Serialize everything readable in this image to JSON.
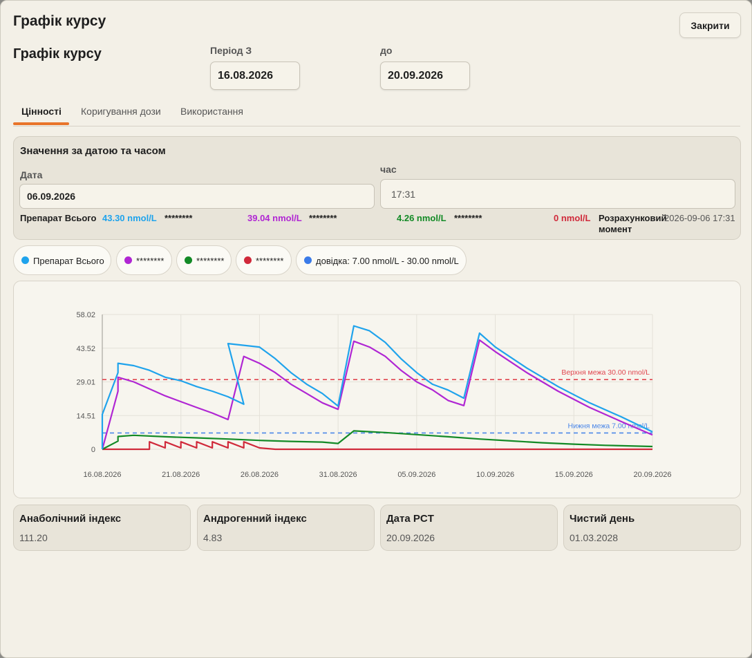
{
  "dialog": {
    "title": "Графік курсу",
    "close_label": "Закрити"
  },
  "header": {
    "title": "Графік курсу",
    "period_from_label": "Період З",
    "period_from_value": "16.08.2026",
    "period_to_label": "до",
    "period_to_value": "20.09.2026"
  },
  "tabs": [
    {
      "label": "Цінності",
      "active": true
    },
    {
      "label": "Коригування дози",
      "active": false
    },
    {
      "label": "Використання",
      "active": false
    }
  ],
  "values_panel": {
    "title": "Значення за датою та часом",
    "date_label": "Дата",
    "date_value": "06.09.2026",
    "time_label": "час",
    "time_value": "17:31",
    "readout": {
      "total_label": "Препарат Всього",
      "total_value": "43.30 nmol/L",
      "s1_label": "********",
      "s1_value": "39.04 nmol/L",
      "s2_label": "********",
      "s2_value": "4.26 nmol/L",
      "s3_label": "********",
      "s3_value": "0 nmol/L",
      "moment_label": "Розрахунковий момент",
      "moment_value": "2026-09-06 17:31"
    }
  },
  "legend": [
    {
      "label": "Препарат Всього",
      "color": "#1fa3ec"
    },
    {
      "label": "********",
      "color": "#b026d3"
    },
    {
      "label": "********",
      "color": "#138a26"
    },
    {
      "label": "********",
      "color": "#d0293a"
    },
    {
      "label": "довідка: 7.00 nmol/L - 30.00 nmol/L",
      "color": "#3b7be8"
    }
  ],
  "colors": {
    "total": "#1fa3ec",
    "s1": "#b026d3",
    "s2": "#138a26",
    "s3": "#d0293a",
    "upper": "#e0464f",
    "lower": "#4a86e8",
    "accent": "#e8742a"
  },
  "chart_data": {
    "type": "line",
    "x_ticks": [
      "16.08.2026",
      "21.08.2026",
      "26.08.2026",
      "31.08.2026",
      "05.09.2026",
      "10.09.2026",
      "15.09.2026",
      "20.09.2026"
    ],
    "y_ticks": [
      "58.02",
      "43.52",
      "29.01",
      "14.51",
      "0"
    ],
    "ylim": [
      0,
      58.02
    ],
    "xlim": [
      "2026-08-16",
      "2026-09-20"
    ],
    "ref_upper": {
      "value": 30.0,
      "label": "Верхня межа 30.00 nmol/L"
    },
    "ref_lower": {
      "value": 7.0,
      "label": "Нижня межа 7.00 nmol/L"
    },
    "series": [
      {
        "key": "total",
        "x": [
          "2026-08-16",
          "2026-08-16",
          "2026-08-17",
          "2026-08-17",
          "2026-08-18",
          "2026-08-19",
          "2026-08-20",
          "2026-08-21",
          "2026-08-22",
          "2026-08-23",
          "2026-08-24",
          "2026-08-25",
          "2026-08-24",
          "2026-08-26",
          "2026-08-27",
          "2026-08-28",
          "2026-08-29",
          "2026-08-30",
          "2026-08-31",
          "2026-09-01",
          "2026-09-02",
          "2026-09-03",
          "2026-09-04",
          "2026-09-05",
          "2026-09-06",
          "2026-09-07",
          "2026-09-08",
          "2026-09-09",
          "2026-09-10",
          "2026-09-12",
          "2026-09-14",
          "2026-09-16",
          "2026-09-18",
          "2026-09-20"
        ],
        "y": [
          0,
          15,
          33,
          37,
          36,
          34,
          31,
          29.5,
          27,
          25,
          22.6,
          19.4,
          45.5,
          44,
          39,
          33,
          28,
          24,
          18.6,
          53.1,
          51,
          46,
          39,
          33,
          28,
          25.5,
          22,
          50,
          44,
          35,
          27,
          20,
          14,
          7.5
        ]
      },
      {
        "key": "s1",
        "x": [
          "2026-08-16",
          "2026-08-17",
          "2026-08-17",
          "2026-08-18",
          "2026-08-19",
          "2026-08-20",
          "2026-08-21",
          "2026-08-22",
          "2026-08-23",
          "2026-08-24",
          "2026-08-25",
          "2026-08-26",
          "2026-08-27",
          "2026-08-28",
          "2026-08-29",
          "2026-08-30",
          "2026-08-31",
          "2026-09-01",
          "2026-09-02",
          "2026-09-03",
          "2026-09-04",
          "2026-09-05",
          "2026-09-06",
          "2026-09-07",
          "2026-09-08",
          "2026-09-09",
          "2026-09-10",
          "2026-09-12",
          "2026-09-14",
          "2026-09-16",
          "2026-09-18",
          "2026-09-20"
        ],
        "y": [
          0,
          25,
          31,
          29,
          26,
          23,
          20.5,
          18,
          15.6,
          12.8,
          40,
          37,
          33,
          28,
          24,
          20,
          17.2,
          46.5,
          44,
          40,
          34,
          29,
          25.6,
          21,
          18.8,
          47,
          42,
          33,
          25,
          18,
          12,
          6.2
        ]
      },
      {
        "key": "s2",
        "x": [
          "2026-08-16",
          "2026-08-17",
          "2026-08-17",
          "2026-08-18",
          "2026-08-20",
          "2026-08-22",
          "2026-08-24",
          "2026-08-26",
          "2026-08-28",
          "2026-08-30",
          "2026-08-31",
          "2026-09-01",
          "2026-09-03",
          "2026-09-05",
          "2026-09-07",
          "2026-09-09",
          "2026-09-11",
          "2026-09-13",
          "2026-09-15",
          "2026-09-17",
          "2026-09-20"
        ],
        "y": [
          0,
          3.5,
          5.5,
          6.0,
          5.4,
          4.9,
          4.4,
          3.8,
          3.4,
          3.1,
          2.5,
          7.9,
          7.2,
          6.3,
          5.4,
          4.4,
          3.6,
          2.8,
          2.2,
          1.7,
          1.2
        ]
      },
      {
        "key": "s3",
        "x": [
          "2026-08-16",
          "2026-08-19",
          "2026-08-19",
          "2026-08-20",
          "2026-08-20",
          "2026-08-21",
          "2026-08-21",
          "2026-08-22",
          "2026-08-22",
          "2026-08-23",
          "2026-08-23",
          "2026-08-24",
          "2026-08-24",
          "2026-08-25",
          "2026-08-25",
          "2026-08-26",
          "2026-08-27",
          "2026-09-20"
        ],
        "y": [
          0,
          0,
          3.2,
          0.6,
          3.2,
          0.6,
          3.2,
          0.6,
          3.2,
          0.6,
          3.2,
          0.6,
          3.2,
          0.6,
          3.2,
          0.6,
          0,
          0
        ]
      }
    ]
  },
  "stats": [
    {
      "label": "Анаболічний індекс",
      "value": "111.20"
    },
    {
      "label": "Андрогенний індекс",
      "value": "4.83"
    },
    {
      "label": "Дата PCT",
      "value": "20.09.2026"
    },
    {
      "label": "Чистий день",
      "value": "01.03.2028"
    }
  ]
}
